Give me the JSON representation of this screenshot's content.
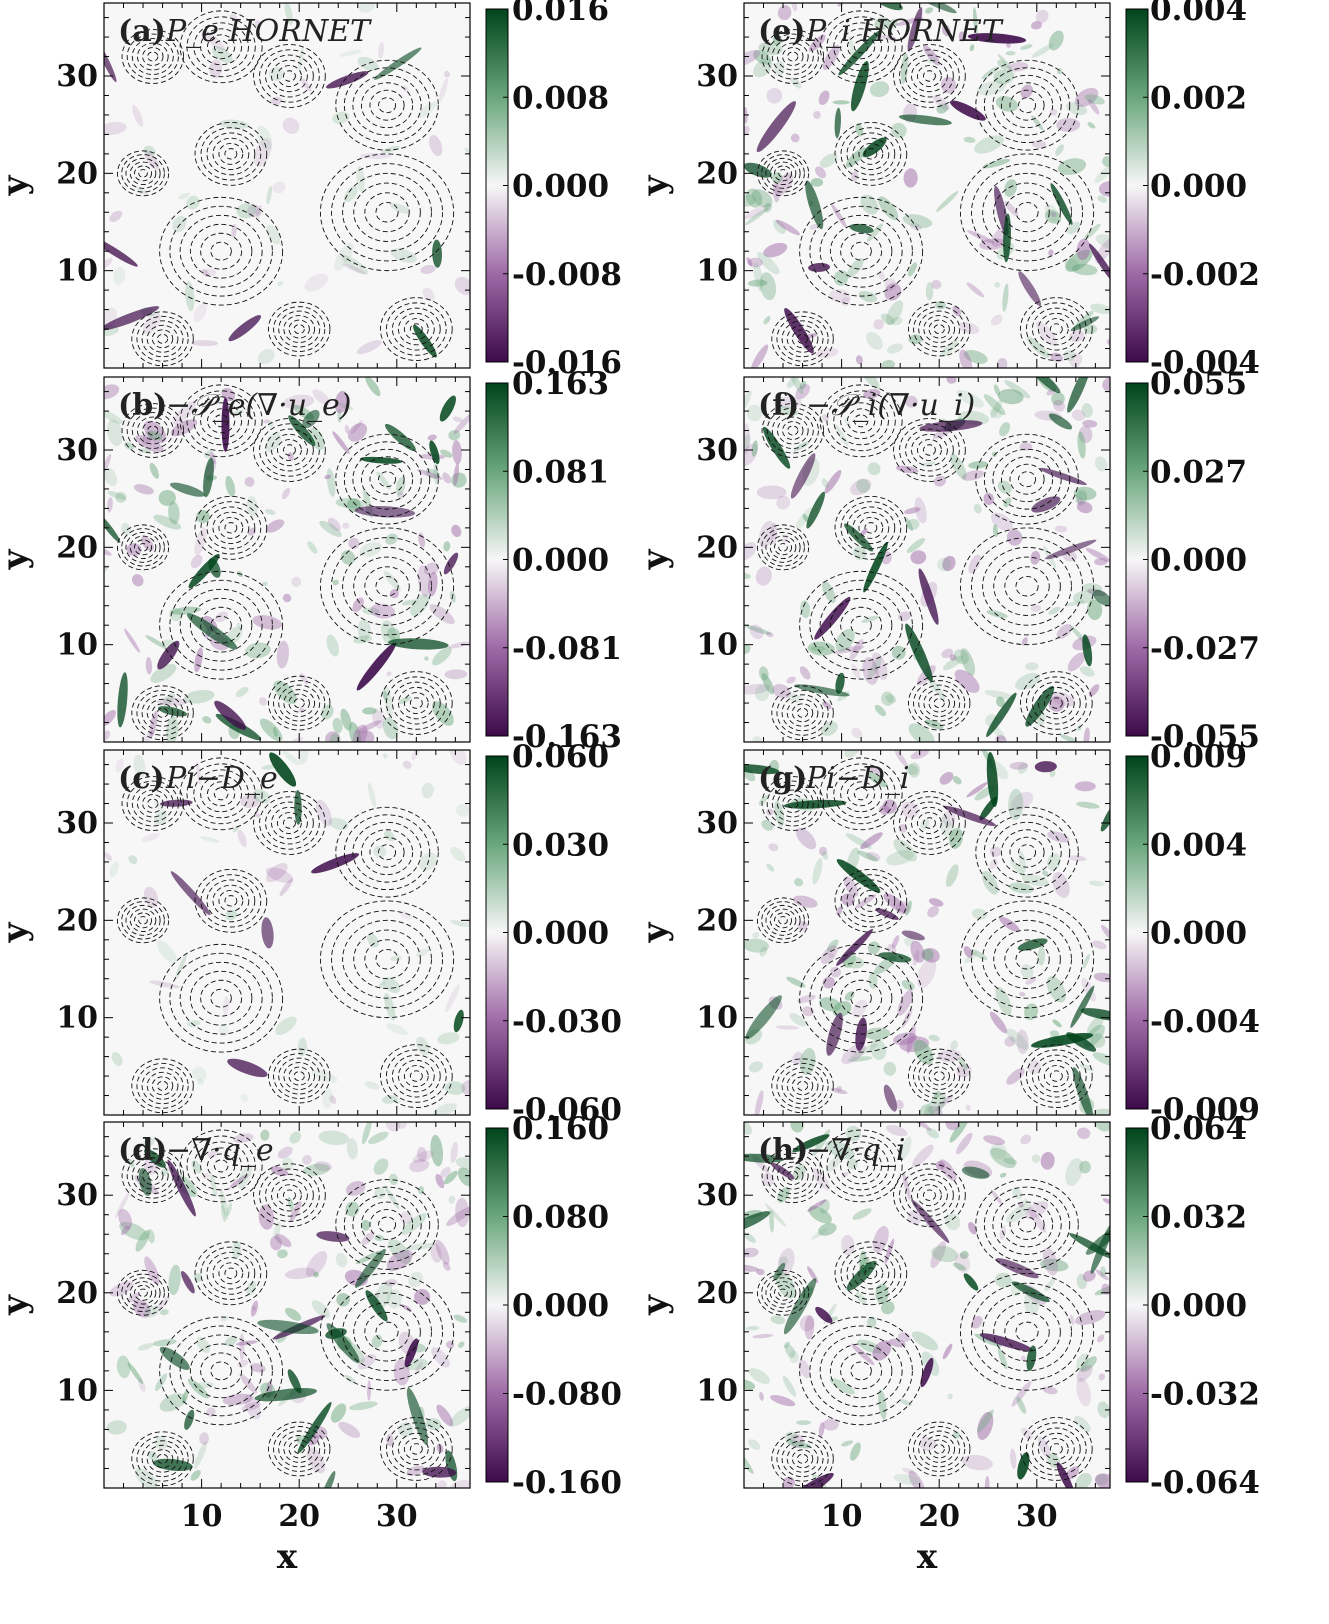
{
  "figure": {
    "x_axis_title": "x",
    "y_axis_title": "y",
    "x_ticks": [
      "10",
      "20",
      "30"
    ],
    "y_ticks": [
      "10",
      "20",
      "30"
    ],
    "colormap": {
      "negative": "#3d0a4a",
      "mid_negative": "#9e6aa6",
      "zero": "#f7f7f7",
      "mid_positive": "#6aa77c",
      "positive": "#00441b"
    }
  },
  "chart_data": [
    {
      "type": "heatmap",
      "panel": "(a)",
      "title": "P_e HORNET",
      "xlim": [
        0,
        37.5
      ],
      "ylim": [
        0,
        37.5
      ],
      "x_ticks": [
        10,
        20,
        30
      ],
      "y_ticks": [
        10,
        20,
        30
      ],
      "colorbar_ticks": [
        "0.016",
        "0.008",
        "0.000",
        "-0.008",
        "-0.016"
      ],
      "colorbar_range": [
        -0.016,
        0.016
      ],
      "overlay": "dashed contours"
    },
    {
      "type": "heatmap",
      "panel": "(b)",
      "title": "−𝒫_e(∇·u_e)",
      "xlim": [
        0,
        37.5
      ],
      "ylim": [
        0,
        37.5
      ],
      "x_ticks": [
        10,
        20,
        30
      ],
      "y_ticks": [
        10,
        20,
        30
      ],
      "colorbar_ticks": [
        "0.163",
        "0.081",
        "0.000",
        "-0.081",
        "-0.163"
      ],
      "colorbar_range": [
        -0.163,
        0.163
      ],
      "overlay": "dashed contours"
    },
    {
      "type": "heatmap",
      "panel": "(c)",
      "title": "Pi−D_e",
      "xlim": [
        0,
        37.5
      ],
      "ylim": [
        0,
        37.5
      ],
      "x_ticks": [
        10,
        20,
        30
      ],
      "y_ticks": [
        10,
        20,
        30
      ],
      "colorbar_ticks": [
        "0.060",
        "0.030",
        "0.000",
        "-0.030",
        "-0.060"
      ],
      "colorbar_range": [
        -0.06,
        0.06
      ],
      "overlay": "dashed contours"
    },
    {
      "type": "heatmap",
      "panel": "(d)",
      "title": "−∇·q_e",
      "xlim": [
        0,
        37.5
      ],
      "ylim": [
        0,
        37.5
      ],
      "x_ticks": [
        10,
        20,
        30
      ],
      "y_ticks": [
        10,
        20,
        30
      ],
      "colorbar_ticks": [
        "0.160",
        "0.080",
        "0.000",
        "-0.080",
        "-0.160"
      ],
      "colorbar_range": [
        -0.16,
        0.16
      ],
      "overlay": "dashed contours"
    },
    {
      "type": "heatmap",
      "panel": "(e)",
      "title": "P_i HORNET",
      "xlim": [
        0,
        37.5
      ],
      "ylim": [
        0,
        37.5
      ],
      "x_ticks": [
        10,
        20,
        30
      ],
      "y_ticks": [
        10,
        20,
        30
      ],
      "colorbar_ticks": [
        "0.004",
        "0.002",
        "0.000",
        "-0.002",
        "-0.004"
      ],
      "colorbar_range": [
        -0.004,
        0.004
      ],
      "overlay": "dashed contours"
    },
    {
      "type": "heatmap",
      "panel": "(f)",
      "title": "−𝒫_i(∇·u_i)",
      "xlim": [
        0,
        37.5
      ],
      "ylim": [
        0,
        37.5
      ],
      "x_ticks": [
        10,
        20,
        30
      ],
      "y_ticks": [
        10,
        20,
        30
      ],
      "colorbar_ticks": [
        "0.055",
        "0.027",
        "0.000",
        "-0.027",
        "-0.055"
      ],
      "colorbar_range": [
        -0.055,
        0.055
      ],
      "overlay": "dashed contours"
    },
    {
      "type": "heatmap",
      "panel": "(g)",
      "title": "Pi−D_i",
      "xlim": [
        0,
        37.5
      ],
      "ylim": [
        0,
        37.5
      ],
      "x_ticks": [
        10,
        20,
        30
      ],
      "y_ticks": [
        10,
        20,
        30
      ],
      "colorbar_ticks": [
        "0.009",
        "0.004",
        "0.000",
        "-0.004",
        "-0.009"
      ],
      "colorbar_range": [
        -0.009,
        0.009
      ],
      "overlay": "dashed contours"
    },
    {
      "type": "heatmap",
      "panel": "(h)",
      "title": "−∇·q_i",
      "xlim": [
        0,
        37.5
      ],
      "ylim": [
        0,
        37.5
      ],
      "x_ticks": [
        10,
        20,
        30
      ],
      "y_ticks": [
        10,
        20,
        30
      ],
      "colorbar_ticks": [
        "0.064",
        "0.032",
        "0.000",
        "-0.032",
        "-0.064"
      ],
      "colorbar_range": [
        -0.064,
        0.064
      ],
      "overlay": "dashed contours"
    }
  ]
}
